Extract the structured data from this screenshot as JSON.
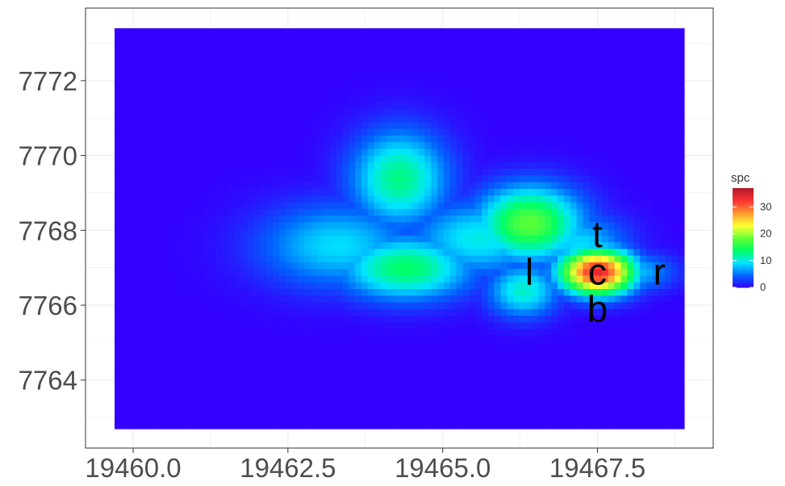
{
  "chart_data": {
    "type": "heatmap",
    "title": "",
    "xlabel": "",
    "ylabel": "",
    "xlim": [
      19459.7,
      19468.9
    ],
    "ylim": [
      7762.7,
      7773.4
    ],
    "x_ticks": [
      19460.0,
      19462.5,
      19465.0,
      19467.5
    ],
    "x_tick_labels": [
      "19460.0",
      "19462.5",
      "19465.0",
      "19467.5"
    ],
    "y_ticks": [
      7764,
      7766,
      7768,
      7770,
      7772
    ],
    "y_tick_labels": [
      "7764",
      "7766",
      "7768",
      "7770",
      "7772"
    ],
    "grid": true,
    "background_value": 0,
    "hotspots": [
      {
        "x": 19464.3,
        "y": 7769.4,
        "value": 13,
        "sx": 0.55,
        "sy": 0.9
      },
      {
        "x": 19464.4,
        "y": 7767.0,
        "value": 14,
        "sx": 0.75,
        "sy": 0.6
      },
      {
        "x": 19463.3,
        "y": 7767.6,
        "value": 9,
        "sx": 0.9,
        "sy": 0.8
      },
      {
        "x": 19465.6,
        "y": 7767.8,
        "value": 10,
        "sx": 0.8,
        "sy": 0.7
      },
      {
        "x": 19466.4,
        "y": 7768.2,
        "value": 18,
        "sx": 0.6,
        "sy": 0.7
      },
      {
        "x": 19466.3,
        "y": 7766.4,
        "value": 11,
        "sx": 0.4,
        "sy": 0.5
      },
      {
        "x": 19467.2,
        "y": 7767.6,
        "value": 9,
        "sx": 0.55,
        "sy": 0.6
      },
      {
        "x": 19467.5,
        "y": 7766.9,
        "value": 34,
        "sx": 0.42,
        "sy": 0.42
      },
      {
        "x": 19468.1,
        "y": 7766.9,
        "value": 8,
        "sx": 0.45,
        "sy": 0.35
      }
    ],
    "annotations": [
      {
        "label": "t",
        "x": 19467.5,
        "y": 7767.9
      },
      {
        "label": "l",
        "x": 19466.4,
        "y": 7766.9
      },
      {
        "label": "c",
        "x": 19467.5,
        "y": 7766.9
      },
      {
        "label": "r",
        "x": 19468.5,
        "y": 7766.9
      },
      {
        "label": "b",
        "x": 19467.5,
        "y": 7765.9
      }
    ],
    "legend": {
      "title": "spc",
      "position": "right",
      "min": 0,
      "max": 37,
      "ticks": [
        0,
        10,
        20,
        30
      ],
      "tick_labels": [
        "0",
        "10",
        "20",
        "30"
      ],
      "colors": [
        "#3300ff",
        "#0066ff",
        "#00e6ff",
        "#00ff66",
        "#66ff33",
        "#ffff33",
        "#ff9933",
        "#ff3333",
        "#b2182b"
      ]
    }
  }
}
